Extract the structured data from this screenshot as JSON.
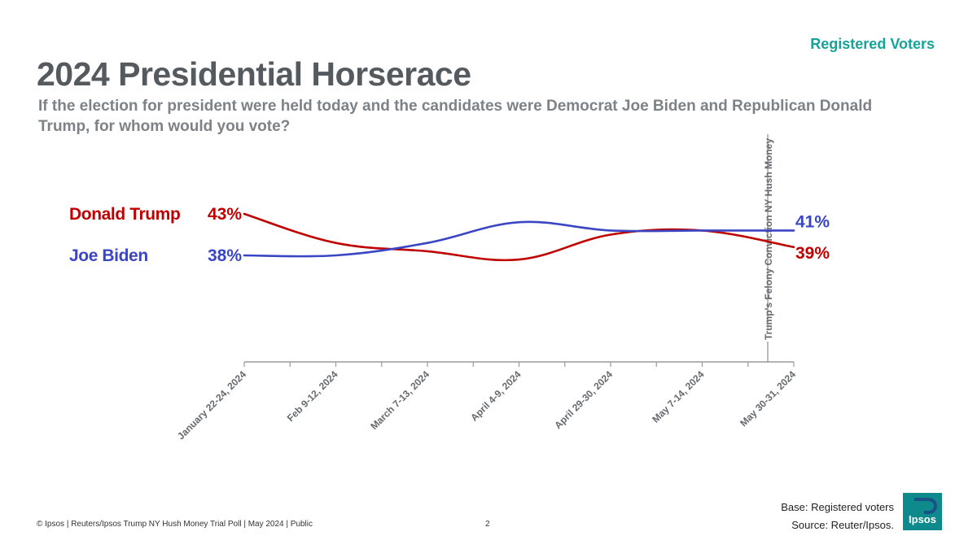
{
  "header": {
    "tag": "Registered Voters",
    "title": "2024 Presidential Horserace",
    "subtitle": "If the election for president were held today and the candidates were Democrat Joe Biden and Republican Donald Trump, for whom would you vote?"
  },
  "chart_data": {
    "type": "line",
    "categories": [
      "January 22-24, 2024",
      "Feb 9-12, 2024",
      "March 7-13, 2024",
      "April 4-9, 2024",
      "April 29-30, 2024",
      "May 7-14, 2024",
      "May 30-31, 2024"
    ],
    "series": [
      {
        "name": "Donald Trump",
        "color": "#c00000",
        "values": [
          43,
          39.5,
          38.5,
          37.5,
          40.5,
          41,
          39
        ],
        "start_label": "43%",
        "end_label": "39%"
      },
      {
        "name": "Joe Biden",
        "color": "#3a46c4",
        "values": [
          38,
          38,
          39.5,
          42,
          41,
          41,
          41
        ],
        "start_label": "38%",
        "end_label": "41%"
      }
    ],
    "ylim": [
      25,
      45
    ],
    "grid": false,
    "legend": "left",
    "annotation": {
      "text": "Trump's Felony Conviction NY Hush Money",
      "position": "before May 30-31, 2024"
    }
  },
  "footer": {
    "copyright": "© Ipsos | Reuters/Ipsos Trump NY Hush Money Trial Poll | May 2024 | Public",
    "page": "2",
    "base": "Base: Registered voters",
    "source": "Source: Reuter/Ipsos.",
    "logo_text": "Ipsos",
    "logo_color": "#0e8a8c"
  }
}
